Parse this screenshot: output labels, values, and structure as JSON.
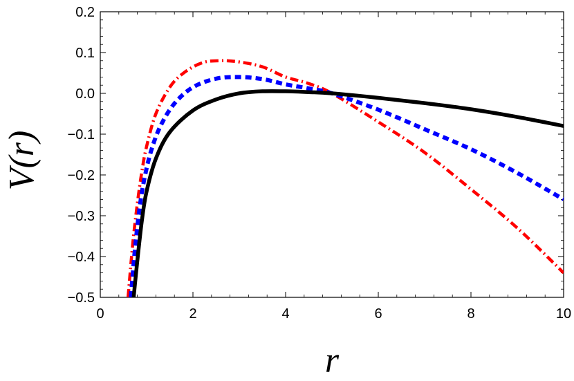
{
  "chart_data": {
    "type": "line",
    "xlabel": "r",
    "ylabel": "V(r)",
    "xlim": [
      0,
      10
    ],
    "ylim": [
      -0.5,
      0.2
    ],
    "grid": false,
    "legend": "none",
    "x_ticks": [
      0,
      2,
      4,
      6,
      8,
      10
    ],
    "x_tick_labels": [
      "0",
      "2",
      "4",
      "6",
      "8",
      "10"
    ],
    "y_ticks": [
      -0.5,
      -0.4,
      -0.3,
      -0.2,
      -0.1,
      0.0,
      0.1,
      0.2
    ],
    "y_tick_labels": [
      "−0.5",
      "−0.4",
      "−0.3",
      "−0.2",
      "−0.1",
      "0.0",
      "0.1",
      "0.2"
    ],
    "series": [
      {
        "style": "solid",
        "color": "#000000",
        "x": [
          0.72,
          0.8,
          0.9,
          1.0,
          1.2,
          1.5,
          2.0,
          2.5,
          3.0,
          3.5,
          4.0,
          4.5,
          5.0,
          6.0,
          7.0,
          8.0,
          9.0,
          10.0
        ],
        "y": [
          -0.5,
          -0.41,
          -0.31,
          -0.24,
          -0.16,
          -0.095,
          -0.042,
          -0.015,
          0.0,
          0.005,
          0.005,
          0.003,
          0.0,
          -0.011,
          -0.024,
          -0.039,
          -0.058,
          -0.08
        ]
      },
      {
        "style": "dashed",
        "color": "#0000ff",
        "x": [
          0.66,
          0.75,
          0.85,
          0.95,
          1.1,
          1.3,
          1.6,
          2.0,
          2.5,
          3.0,
          3.5,
          4.0,
          4.5,
          5.0,
          6.0,
          7.0,
          8.0,
          9.0,
          10.0
        ],
        "y": [
          -0.5,
          -0.38,
          -0.28,
          -0.21,
          -0.14,
          -0.08,
          -0.025,
          0.015,
          0.036,
          0.04,
          0.035,
          0.022,
          0.012,
          0.0,
          -0.04,
          -0.088,
          -0.137,
          -0.195,
          -0.26
        ]
      },
      {
        "style": "dashdot",
        "color": "#ff0000",
        "x": [
          0.6,
          0.7,
          0.8,
          0.9,
          1.0,
          1.2,
          1.5,
          1.8,
          2.2,
          2.6,
          3.0,
          3.5,
          4.0,
          4.5,
          5.0,
          6.0,
          7.0,
          8.0,
          9.0,
          10.0
        ],
        "y": [
          -0.5,
          -0.37,
          -0.27,
          -0.19,
          -0.13,
          -0.05,
          0.015,
          0.05,
          0.075,
          0.08,
          0.077,
          0.065,
          0.04,
          0.024,
          0.0,
          -0.07,
          -0.145,
          -0.235,
          -0.33,
          -0.44
        ]
      }
    ]
  }
}
